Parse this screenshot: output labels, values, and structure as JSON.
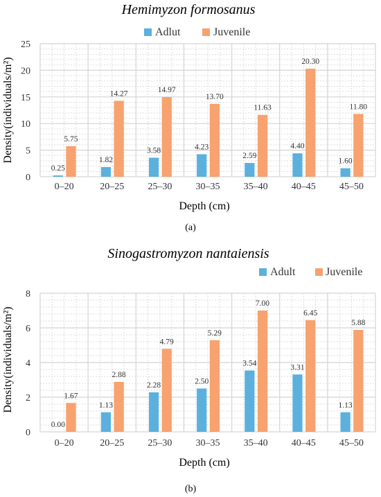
{
  "colors": {
    "adult": "#5BB0DE",
    "juvenile": "#F7A26F",
    "grid_major": "#D4D4D4",
    "grid_minor": "#DDDDDD"
  },
  "chart_data": [
    {
      "type": "bar",
      "title": "Hemimyzon formosanus",
      "caption": "(a)",
      "xlabel": "Depth (cm)",
      "ylabel": "Density(individuals/m²)",
      "ylim": [
        0,
        25
      ],
      "yticks": [
        "0",
        "5",
        "10",
        "15",
        "20",
        "25"
      ],
      "grid": true,
      "legend": "top",
      "categories": [
        "0–20",
        "20–25",
        "25–30",
        "30–35",
        "35–40",
        "40–45",
        "45–50"
      ],
      "series": [
        {
          "name": "Adlut",
          "values": [
            0.25,
            1.82,
            3.58,
            4.23,
            2.59,
            4.4,
            1.6
          ],
          "labels": [
            "0.25",
            "1.82",
            "3.58",
            "4.23",
            "2.59",
            "4.40",
            "1.60"
          ]
        },
        {
          "name": "Juvenile",
          "values": [
            5.75,
            14.27,
            14.97,
            13.7,
            11.63,
            20.3,
            11.8
          ],
          "labels": [
            "5.75",
            "14.27",
            "14.97",
            "13.70",
            "11.63",
            "20.30",
            "11.80"
          ]
        }
      ]
    },
    {
      "type": "bar",
      "title": "Sinogastromyzon nantaiensis",
      "caption": "(b)",
      "xlabel": "Depth (cm)",
      "ylabel": "Density(individuals/m²)",
      "ylim": [
        0,
        8
      ],
      "yticks": [
        "0",
        "2",
        "4",
        "6",
        "8"
      ],
      "grid": true,
      "legend": "top",
      "categories": [
        "0–20",
        "20–25",
        "25–30",
        "30–35",
        "35–40",
        "40–45",
        "45–50"
      ],
      "series": [
        {
          "name": "Adult",
          "values": [
            0.0,
            1.13,
            2.28,
            2.5,
            3.54,
            3.31,
            1.13
          ],
          "labels": [
            "0.00",
            "1.13",
            "2.28",
            "2.50",
            "3.54",
            "3.31",
            "1.13"
          ]
        },
        {
          "name": "Juvenile",
          "values": [
            1.67,
            2.88,
            4.79,
            5.29,
            7.0,
            6.45,
            5.88
          ],
          "labels": [
            "1.67",
            "2.88",
            "4.79",
            "5.29",
            "7.00",
            "6.45",
            "5.88"
          ]
        }
      ]
    }
  ]
}
